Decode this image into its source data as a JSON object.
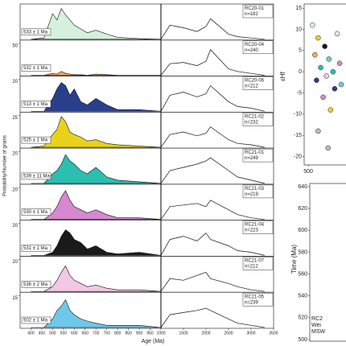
{
  "chart_data": [
    {
      "type": "area",
      "sample": "RC20-01",
      "n": "n=182",
      "age": "533 ± 1 Ma",
      "color": "#d5f0dc",
      "ylabel": "Probability/Number of grains",
      "x": [
        400,
        460,
        500,
        520,
        540,
        560,
        580,
        600,
        630,
        660,
        700,
        750,
        800,
        900,
        1000,
        1200,
        1500,
        1800,
        2000,
        2100,
        2500,
        2700,
        3000,
        3300
      ],
      "values": [
        0,
        2,
        40,
        30,
        48,
        38,
        30,
        22,
        16,
        10,
        14,
        8,
        3,
        1,
        0,
        22,
        18,
        12,
        20,
        32,
        8,
        4,
        2,
        0
      ],
      "xlim": [
        350,
        3500
      ],
      "xbreak": 1000,
      "ylim": [
        0,
        50
      ],
      "yticks": []
    },
    {
      "type": "area",
      "sample": "RC20-04",
      "n": "n=240",
      "age": "532 ± 1 Ma",
      "color": "#f0a860",
      "x": [
        400,
        460,
        500,
        520,
        540,
        560,
        580,
        600,
        630,
        660,
        700,
        750,
        800,
        900,
        1000,
        1200,
        1500,
        1800,
        2000,
        2100,
        2500,
        2700,
        3000,
        3300
      ],
      "values": [
        0,
        0,
        3,
        2,
        6,
        3,
        2,
        1,
        1,
        0,
        2,
        1,
        0,
        0,
        0,
        18,
        20,
        15,
        22,
        40,
        10,
        6,
        3,
        0
      ],
      "xlim": [
        350,
        3500
      ],
      "xbreak": 1000,
      "ylim": [
        0,
        50
      ],
      "yticks": [
        50
      ]
    },
    {
      "type": "area",
      "sample": "RC20-06",
      "n": "n=212",
      "age": "513 ± 1 Ma",
      "color": "#2a3f8c",
      "x": [
        400,
        460,
        500,
        520,
        540,
        560,
        580,
        600,
        630,
        660,
        700,
        750,
        800,
        900,
        1000,
        1200,
        1500,
        1800,
        2000,
        2100,
        2500,
        2700,
        3000,
        3300
      ],
      "values": [
        0,
        0,
        8,
        14,
        18,
        16,
        10,
        14,
        6,
        4,
        8,
        4,
        1,
        1,
        0,
        10,
        12,
        9,
        11,
        16,
        6,
        3,
        2,
        0
      ],
      "xlim": [
        350,
        3500
      ],
      "xbreak": 1000,
      "ylim": [
        0,
        20
      ],
      "yticks": [
        20
      ]
    },
    {
      "type": "area",
      "sample": "RC21-02",
      "n": "n=232",
      "age": "525 ± 1 Ma",
      "color": "#e8d31a",
      "x": [
        400,
        460,
        500,
        520,
        540,
        560,
        580,
        600,
        630,
        660,
        700,
        750,
        800,
        900,
        1000,
        1200,
        1500,
        1800,
        2000,
        2100,
        2500,
        2700,
        3000,
        3300
      ],
      "values": [
        0,
        1,
        10,
        14,
        24,
        20,
        12,
        10,
        8,
        5,
        6,
        3,
        2,
        1,
        0,
        10,
        12,
        9,
        11,
        16,
        6,
        3,
        2,
        0
      ],
      "xlim": [
        350,
        3500
      ],
      "xbreak": 1000,
      "ylim": [
        0,
        25
      ],
      "yticks": [
        25
      ]
    },
    {
      "type": "area",
      "sample": "RC21-01",
      "n": "n=249",
      "age": "539 ± 11 Ma",
      "color": "#2bbfb0",
      "x": [
        400,
        460,
        500,
        520,
        540,
        560,
        580,
        600,
        630,
        660,
        700,
        750,
        800,
        900,
        1000,
        1200,
        1500,
        1800,
        2000,
        2100,
        2500,
        2700,
        3000,
        3300
      ],
      "values": [
        0,
        0,
        6,
        8,
        12,
        18,
        14,
        12,
        8,
        6,
        10,
        4,
        2,
        1,
        0,
        8,
        10,
        12,
        14,
        16,
        8,
        4,
        2,
        0
      ],
      "xlim": [
        350,
        3500
      ],
      "xbreak": 1000,
      "ylim": [
        0,
        20
      ],
      "yticks": [
        20
      ]
    },
    {
      "type": "area",
      "sample": "RC21-03",
      "n": "n=219",
      "age": "530 ± 1 Ma",
      "color": "#d688d0",
      "x": [
        400,
        460,
        500,
        520,
        540,
        560,
        580,
        600,
        630,
        660,
        700,
        750,
        800,
        900,
        1000,
        1200,
        1500,
        1800,
        2000,
        2100,
        2500,
        2700,
        3000,
        3300
      ],
      "values": [
        0,
        0,
        4,
        8,
        14,
        18,
        12,
        8,
        6,
        4,
        6,
        3,
        1,
        1,
        0,
        8,
        9,
        10,
        8,
        12,
        6,
        3,
        1,
        0
      ],
      "xlim": [
        350,
        3500
      ],
      "xbreak": 1000,
      "ylim": [
        0,
        20
      ],
      "yticks": [
        20
      ]
    },
    {
      "type": "area",
      "sample": "RC21-04",
      "n": "n=223",
      "age": "531 ± 1 Ma",
      "color": "#1a1a1a",
      "x": [
        400,
        460,
        500,
        520,
        540,
        560,
        580,
        600,
        630,
        660,
        700,
        750,
        800,
        900,
        1000,
        1200,
        1500,
        1800,
        2000,
        2100,
        2500,
        2700,
        3000,
        3300
      ],
      "values": [
        0,
        0,
        2,
        6,
        12,
        16,
        14,
        10,
        8,
        4,
        6,
        2,
        1,
        2,
        0,
        10,
        12,
        9,
        14,
        10,
        6,
        3,
        2,
        0
      ],
      "xlim": [
        350,
        3500
      ],
      "xbreak": 1000,
      "ylim": [
        0,
        20
      ],
      "yticks": [
        20
      ]
    },
    {
      "type": "area",
      "sample": "RC21-07",
      "n": "n=212",
      "age": "536 ± 2 Ma",
      "color": "#f4c8e4",
      "x": [
        400,
        460,
        500,
        520,
        540,
        560,
        580,
        600,
        630,
        660,
        700,
        750,
        800,
        900,
        1000,
        1200,
        1500,
        1800,
        2000,
        2100,
        2500,
        2700,
        3000,
        3300
      ],
      "values": [
        0,
        0,
        3,
        7,
        12,
        16,
        10,
        7,
        5,
        3,
        4,
        2,
        1,
        1,
        0,
        8,
        7,
        10,
        12,
        8,
        5,
        3,
        1,
        0
      ],
      "xlim": [
        350,
        3500
      ],
      "xbreak": 1000,
      "ylim": [
        0,
        20
      ],
      "yticks": [
        20
      ]
    },
    {
      "type": "area",
      "sample": "RC21-05",
      "n": "n=239",
      "age": "502 ± 1 Ma",
      "color": "#6ec8e8",
      "xlabel": "Age (Ma)",
      "x": [
        400,
        460,
        500,
        520,
        540,
        560,
        580,
        600,
        630,
        660,
        700,
        750,
        800,
        900,
        1000,
        1200,
        1500,
        1800,
        2000,
        2100,
        2500,
        2700,
        3000,
        3300
      ],
      "values": [
        0,
        0,
        4,
        8,
        10,
        13,
        8,
        6,
        4,
        3,
        2,
        1,
        1,
        1,
        0,
        6,
        7,
        8,
        9,
        8,
        4,
        2,
        1,
        0
      ],
      "xlim": [
        350,
        3500
      ],
      "xbreak": 1000,
      "ylim": [
        0,
        15
      ],
      "yticks": [
        15
      ],
      "xticks": [
        400,
        450,
        500,
        550,
        600,
        650,
        700,
        750,
        800,
        850,
        900,
        950,
        1000,
        1500,
        2000,
        2500,
        3000,
        3500
      ]
    },
    {
      "type": "scatter",
      "ylabel": "εHf",
      "xlim": [
        495,
        575
      ],
      "xticks": [
        500
      ],
      "ylim": [
        -22,
        16
      ],
      "yticks": [
        15,
        10,
        5,
        0,
        -5,
        -10,
        -15,
        -20
      ],
      "x": [
        505,
        508,
        510,
        512,
        515,
        518,
        520,
        522,
        525,
        527,
        530,
        532,
        535,
        538,
        540,
        512,
        524
      ],
      "y": [
        11,
        4,
        -2,
        8,
        1,
        -6,
        6,
        -1,
        3,
        -9,
        0,
        -4,
        9,
        2,
        -3,
        -14,
        -18
      ],
      "colors": [
        "#d5f0dc",
        "#f0a860",
        "#2a3f8c",
        "#e8d31a",
        "#2bbfb0",
        "#d688d0",
        "#1a1a1a",
        "#f4c8e4",
        "#6ec8e8",
        "#e8d31a",
        "#2bbfb0",
        "#2a3f8c",
        "#d5f0dc",
        "#d688d0",
        "#6ec8e8",
        "#bbbbbb",
        "#bbbbbb"
      ]
    },
    {
      "type": "axis",
      "ylabel": "Time (Ma)",
      "ylim": [
        500,
        640
      ],
      "yticks": [
        640,
        620,
        600,
        580,
        560,
        540,
        520,
        500
      ],
      "annotations": [
        "RC2",
        "Wei",
        "MSW"
      ]
    }
  ]
}
